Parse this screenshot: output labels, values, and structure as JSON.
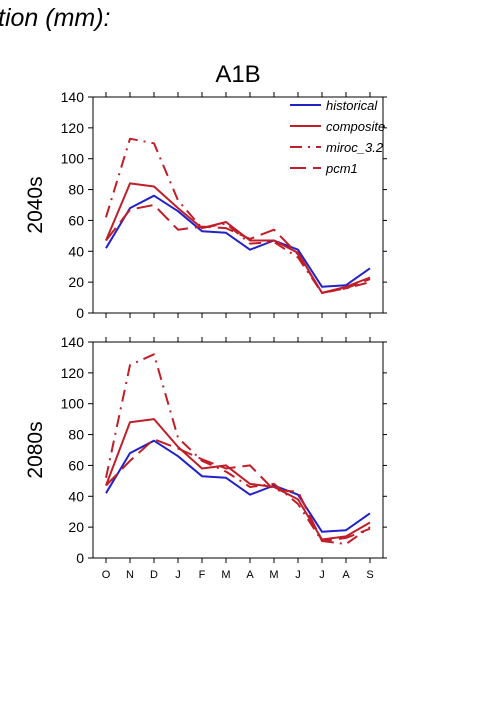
{
  "header": {
    "text": "tion (mm):"
  },
  "chart_data": {
    "type": "line",
    "title": "A1B",
    "categories": [
      "O",
      "N",
      "D",
      "J",
      "F",
      "M",
      "A",
      "M",
      "J",
      "J",
      "A",
      "S"
    ],
    "legend": {
      "placement": "top-right"
    },
    "colors": {
      "historical": "#2222c8",
      "scenario": "#c01e28"
    },
    "ylim": [
      0,
      140
    ],
    "yticks": [
      0,
      20,
      40,
      60,
      80,
      100,
      120,
      140
    ],
    "panels": [
      {
        "ylabel": "2040s",
        "series": [
          {
            "name": "historical",
            "style": "solid",
            "color": "#2222c8",
            "values": [
              42,
              68,
              76,
              66,
              53,
              52,
              41,
              47,
              41,
              17,
              18,
              29
            ]
          },
          {
            "name": "composite",
            "style": "solid",
            "color": "#c01e28",
            "values": [
              47,
              84,
              82,
              68,
              55,
              59,
              47,
              47,
              39,
              13,
              17,
              23
            ]
          },
          {
            "name": "miroc_3.2",
            "style": "dashdot",
            "color": "#c01e28",
            "values": [
              62,
              113,
              110,
              73,
              55,
              58,
              45,
              46,
              36,
              13,
              16,
              20
            ]
          },
          {
            "name": "pcm1",
            "style": "dashed",
            "color": "#c01e28",
            "values": [
              47,
              67,
              70,
              54,
              56,
              55,
              48,
              54,
              38,
              13,
              16,
              22
            ]
          }
        ]
      },
      {
        "ylabel": "2080s",
        "series": [
          {
            "name": "historical",
            "style": "solid",
            "color": "#2222c8",
            "values": [
              42,
              68,
              76,
              66,
              53,
              52,
              41,
              47,
              41,
              17,
              18,
              29
            ]
          },
          {
            "name": "composite",
            "style": "solid",
            "color": "#c01e28",
            "values": [
              47,
              88,
              90,
              72,
              58,
              60,
              48,
              46,
              38,
              12,
              14,
              23
            ]
          },
          {
            "name": "miroc_3.2",
            "style": "dashdot",
            "color": "#c01e28",
            "values": [
              52,
              125,
              132,
              78,
              63,
              56,
              46,
              48,
              35,
              11,
              9,
              20
            ]
          },
          {
            "name": "pcm1",
            "style": "dashed",
            "color": "#c01e28",
            "values": [
              47,
              63,
              77,
              71,
              64,
              58,
              60,
              44,
              43,
              11,
              13,
              19
            ]
          }
        ]
      }
    ]
  }
}
